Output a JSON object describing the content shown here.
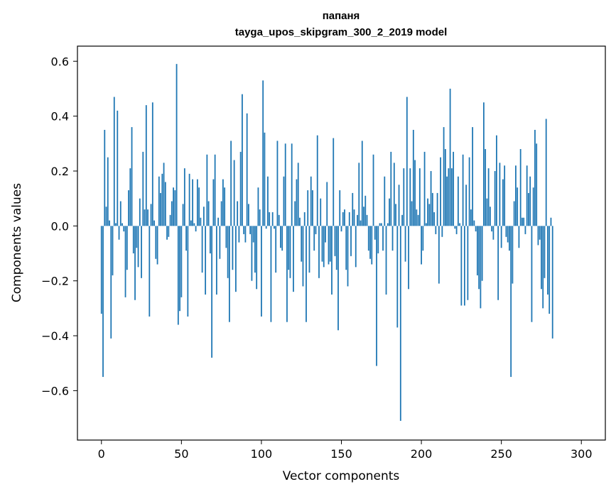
{
  "chart_data": {
    "type": "bar",
    "title_line1": "папаня",
    "title_line2": "tayga_upos_skipgram_300_2_2019 model",
    "xlabel": "Vector components",
    "ylabel": "Components values",
    "xlim": [
      -15,
      315
    ],
    "ylim": [
      -0.78,
      0.655
    ],
    "xticks": [
      0,
      50,
      100,
      150,
      200,
      250,
      300
    ],
    "yticks": [
      -0.6,
      -0.4,
      -0.2,
      0.0,
      0.2,
      0.4,
      0.6
    ],
    "xtick_labels": [
      "0",
      "50",
      "100",
      "150",
      "200",
      "250",
      "300"
    ],
    "ytick_labels": [
      "−0.6",
      "−0.4",
      "−0.2",
      "0.0",
      "0.2",
      "0.4",
      "0.6"
    ],
    "bar_color": "#1f77b4",
    "values": [
      -0.32,
      -0.55,
      0.35,
      0.07,
      0.25,
      0.02,
      -0.41,
      -0.18,
      0.47,
      0.01,
      0.42,
      -0.05,
      0.09,
      0.01,
      -0.02,
      -0.26,
      -0.16,
      0.13,
      0.21,
      0.36,
      -0.1,
      -0.27,
      -0.08,
      -0.15,
      0.1,
      -0.19,
      0.27,
      0.06,
      0.44,
      0.06,
      -0.33,
      0.08,
      0.45,
      0.02,
      -0.12,
      -0.14,
      0.18,
      0.12,
      0.19,
      0.23,
      0.16,
      -0.05,
      -0.04,
      0.04,
      0.09,
      0.14,
      0.13,
      0.59,
      -0.36,
      -0.31,
      -0.26,
      0.08,
      0.21,
      -0.09,
      -0.33,
      0.19,
      0.02,
      0.17,
      0.01,
      -0.02,
      0.17,
      0.14,
      0.03,
      -0.17,
      0.07,
      -0.25,
      0.26,
      0.09,
      -0.1,
      -0.48,
      0.17,
      0.26,
      -0.25,
      0.03,
      -0.12,
      0.09,
      0.17,
      0.14,
      -0.08,
      -0.19,
      -0.35,
      0.31,
      -0.16,
      0.24,
      -0.24,
      0.09,
      -0.06,
      0.27,
      0.48,
      -0.03,
      -0.06,
      0.41,
      0.08,
      -0.03,
      -0.2,
      -0.06,
      -0.17,
      -0.23,
      0.14,
      0.06,
      -0.33,
      0.53,
      0.34,
      -0.01,
      0.18,
      0.05,
      -0.35,
      0.05,
      -0.01,
      -0.17,
      0.31,
      0.04,
      -0.08,
      -0.09,
      0.18,
      0.3,
      -0.35,
      -0.16,
      -0.19,
      0.3,
      -0.24,
      0.09,
      0.17,
      0.23,
      0.03,
      -0.13,
      -0.22,
      0.05,
      -0.35,
      0.13,
      -0.17,
      0.18,
      0.13,
      -0.09,
      -0.03,
      0.33,
      -0.19,
      0.1,
      -0.13,
      -0.15,
      -0.06,
      0.16,
      -0.14,
      -0.13,
      -0.25,
      0.32,
      -0.11,
      -0.16,
      -0.38,
      0.13,
      -0.02,
      0.05,
      0.06,
      -0.16,
      -0.22,
      0.05,
      -0.11,
      0.12,
      0.06,
      -0.15,
      0.04,
      0.23,
      0.02,
      0.31,
      0.07,
      0.11,
      0.04,
      -0.09,
      -0.12,
      -0.14,
      0.26,
      -0.05,
      -0.51,
      -0.1,
      0.01,
      0.01,
      -0.09,
      0.18,
      -0.25,
      0.01,
      0.1,
      0.27,
      -0.09,
      0.23,
      0.08,
      -0.37,
      0.15,
      -0.71,
      0.04,
      0.21,
      -0.13,
      0.47,
      -0.23,
      0.21,
      0.09,
      0.35,
      0.24,
      0.06,
      0.04,
      0.21,
      -0.14,
      -0.09,
      0.27,
      0.01,
      0.1,
      0.08,
      0.2,
      0.12,
      0.05,
      -0.03,
      0.12,
      -0.21,
      0.25,
      -0.04,
      0.36,
      0.28,
      0.18,
      0.21,
      0.5,
      0.21,
      0.27,
      -0.01,
      -0.03,
      0.18,
      0.01,
      -0.29,
      0.26,
      -0.29,
      0.15,
      -0.27,
      0.25,
      0.06,
      0.36,
      0.02,
      -0.02,
      -0.18,
      -0.23,
      -0.3,
      -0.2,
      0.45,
      0.28,
      0.1,
      0.21,
      0.07,
      -0.02,
      -0.05,
      0.2,
      0.33,
      -0.27,
      0.23,
      -0.08,
      0.17,
      0.22,
      -0.04,
      -0.06,
      -0.09,
      -0.55,
      -0.21,
      0.09,
      0.22,
      0.14,
      -0.08,
      0.28,
      0.03,
      0.03,
      -0.03,
      0.22,
      0.12,
      0.18,
      -0.35,
      0.14,
      0.35,
      0.3,
      -0.07,
      -0.05,
      -0.23,
      -0.3,
      -0.19,
      0.39,
      -0.25,
      -0.32,
      0.03,
      -0.41
    ]
  }
}
